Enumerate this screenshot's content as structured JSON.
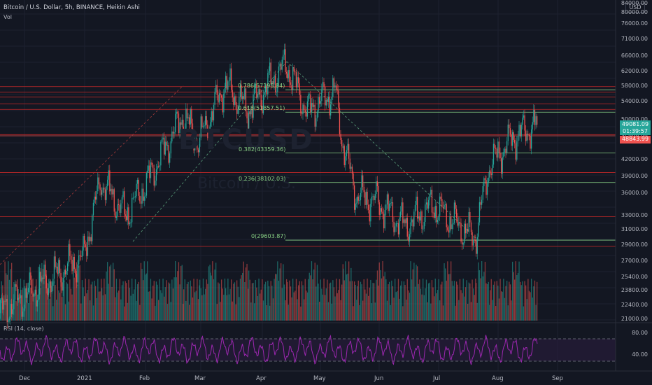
{
  "header": {
    "symbol_line": "Bitcoin / U.S. Dollar, 5h, BINANCE, Heikin Ashi",
    "vol_label": "Vol",
    "rsi_label": "RSI (14, close)"
  },
  "watermark": {
    "ticker": "BTCUSD",
    "name": "Bitcoin / U.S."
  },
  "currency_badge": "USD",
  "price_axis": [
    "84000.00",
    "80000.00",
    "76000.00",
    "71000.00",
    "66000.00",
    "62000.00",
    "58000.00",
    "54000.00",
    "50000.00",
    "46000.00",
    "42000.00",
    "39000.00",
    "36000.00",
    "33000.00",
    "31000.00",
    "29000.00",
    "27000.00",
    "25400.00",
    "23800.00",
    "22400.00",
    "21000.00"
  ],
  "rsi_axis": [
    "80.00",
    "40.00"
  ],
  "time_axis": [
    "Dec",
    "2021",
    "Feb",
    "Mar",
    "Apr",
    "May",
    "Jun",
    "Jul",
    "Aug",
    "Sep"
  ],
  "price_tags": {
    "last_price": "49081.09",
    "countdown": "01:39:57",
    "other": "48843.99"
  },
  "fib_levels": [
    {
      "label": "0.786(57195.84)",
      "price": 57195.84
    },
    {
      "label": "0.618(51857.51)",
      "price": 51857.51
    },
    {
      "label": "0.382(43359.36)",
      "price": 43359.36
    },
    {
      "label": "0.236(38102.03)",
      "price": 38102.03
    },
    {
      "label": "0(29603.87)",
      "price": 29603.87
    }
  ],
  "horizontal_levels": [
    58000,
    56600,
    55400,
    53800,
    52500,
    47000,
    39800,
    32800,
    28800
  ],
  "colors": {
    "background": "#131722",
    "up": "#26a69a",
    "down": "#ef5350",
    "fib": "#89d185",
    "levels": "#c62828",
    "rsi": "#9c27b0",
    "last_price_tag": "#26a69a",
    "other_tag": "#ef5350"
  },
  "chart_data": {
    "type": "candlestick",
    "title": "Bitcoin / U.S. Dollar, 5h, BINANCE, Heikin Ashi",
    "y_scale": "log",
    "ylim": [
      21000,
      84000
    ],
    "x": [
      "Dec",
      "2021",
      "Feb",
      "Mar",
      "Apr",
      "May",
      "Jun",
      "Jul",
      "Aug",
      "Sep"
    ],
    "path": [
      [
        "Dec",
        21500
      ],
      [
        "2021",
        27500
      ],
      [
        "Jan-mid",
        38500
      ],
      [
        "Jan-late",
        33000
      ],
      [
        "Feb",
        38000
      ],
      [
        "Feb-mid",
        51000
      ],
      [
        "Feb-late",
        45500
      ],
      [
        "Mar",
        50500
      ],
      [
        "Mar-mid",
        58500
      ],
      [
        "Mar-late",
        52500
      ],
      [
        "Apr",
        58500
      ],
      [
        "Apr-mid",
        64000
      ],
      [
        "Apr-late",
        52000
      ],
      [
        "May",
        57000
      ],
      [
        "May-mid",
        46000
      ],
      [
        "May-late",
        36000
      ],
      [
        "Jun",
        35000
      ],
      [
        "Jun-late",
        31500
      ],
      [
        "Jul",
        34500
      ],
      [
        "Jul-late",
        29800
      ],
      [
        "Aug",
        41000
      ],
      [
        "Aug-mid",
        46500
      ],
      [
        "Aug-late",
        49081.09
      ]
    ],
    "rsi_levels": [
      70,
      30
    ]
  }
}
